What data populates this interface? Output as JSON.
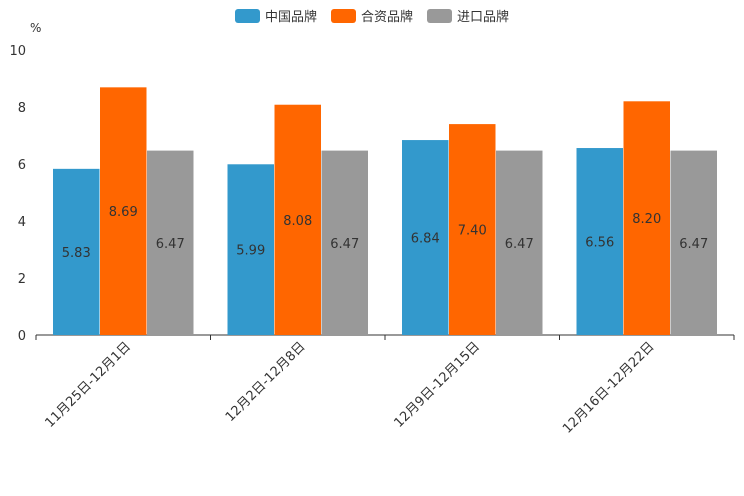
{
  "chart_data": {
    "type": "bar",
    "title": "",
    "unit_label": "%",
    "xlabel": "",
    "ylabel": "%",
    "ylim": [
      0,
      10
    ],
    "yticks": [
      0,
      2,
      4,
      6,
      8,
      10
    ],
    "categories": [
      "11月25日-12月1日",
      "12月2日-12月8日",
      "12月9日-12月15日",
      "12月16日-12月22日"
    ],
    "series": [
      {
        "name": "中国品牌",
        "color": "#3399cc",
        "values": [
          5.83,
          5.99,
          6.84,
          6.56
        ],
        "labels": [
          "5.83",
          "5.99",
          "6.84",
          "6.56"
        ]
      },
      {
        "name": "合资品牌",
        "color": "#ff6600",
        "values": [
          8.69,
          8.08,
          7.4,
          8.2
        ],
        "labels": [
          "8.69",
          "8.08",
          "7.40",
          "8.20"
        ]
      },
      {
        "name": "进口品牌",
        "color": "#999999",
        "values": [
          6.47,
          6.47,
          6.47,
          6.47
        ],
        "labels": [
          "6.47",
          "6.47",
          "6.47",
          "6.47"
        ]
      }
    ],
    "legend_position": "top-center",
    "grid": false
  }
}
